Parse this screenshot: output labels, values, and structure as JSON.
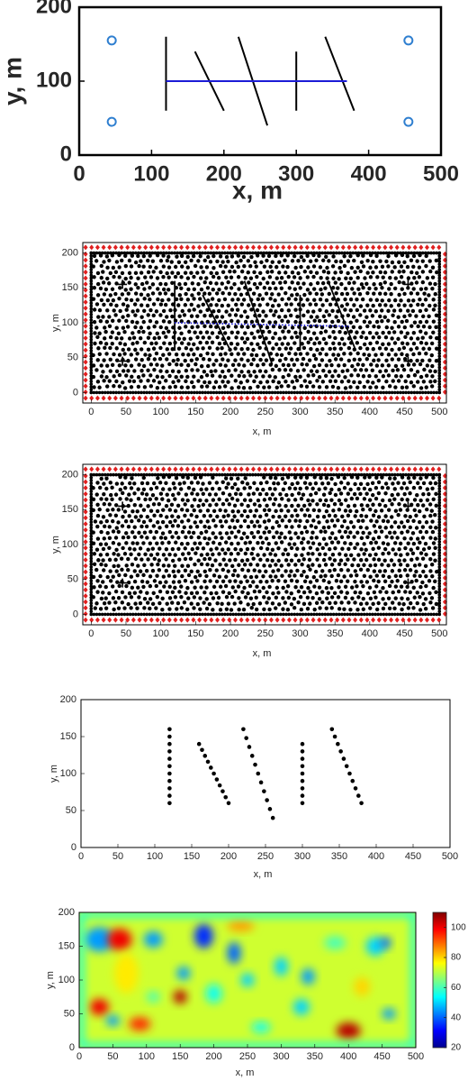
{
  "chart_data": [
    {
      "type": "line",
      "xlabel": "x, m",
      "ylabel": "y, m",
      "xlim": [
        0,
        500
      ],
      "ylim": [
        0,
        200
      ],
      "xticks": [
        0,
        100,
        200,
        300,
        400,
        500
      ],
      "yticks": [
        0,
        100,
        200
      ],
      "series": [
        {
          "color": "#000000",
          "x": [
            120,
            120
          ],
          "y": [
            160,
            60
          ]
        },
        {
          "color": "#000000",
          "x": [
            160,
            200
          ],
          "y": [
            140,
            60
          ]
        },
        {
          "color": "#000000",
          "x": [
            220,
            260
          ],
          "y": [
            160,
            40
          ]
        },
        {
          "color": "#000000",
          "x": [
            300,
            300
          ],
          "y": [
            140,
            60
          ]
        },
        {
          "color": "#000000",
          "x": [
            340,
            380
          ],
          "y": [
            160,
            60
          ]
        },
        {
          "color": "#1c1cd6",
          "x": [
            120,
            370
          ],
          "y": [
            100,
            100
          ]
        },
        {
          "color": "#2f7fd0",
          "marker": "circle",
          "x": [
            45,
            45,
            455,
            455
          ],
          "y": [
            155,
            45,
            155,
            45
          ]
        }
      ]
    },
    {
      "type": "mesh",
      "xlabel": "x, m",
      "ylabel": "y, m",
      "mesh": true,
      "xlim": [
        -12,
        510
      ],
      "ylim": [
        -15,
        215
      ],
      "xticks": [
        0,
        50,
        100,
        150,
        200,
        250,
        300,
        350,
        400,
        450,
        500
      ],
      "yticks": [
        0,
        50,
        100,
        150,
        200
      ],
      "series": [
        {
          "color": "#000000",
          "x": [
            120,
            120
          ],
          "y": [
            160,
            60
          ]
        },
        {
          "color": "#000000",
          "x": [
            160,
            200
          ],
          "y": [
            140,
            60
          ]
        },
        {
          "color": "#000000",
          "x": [
            220,
            260
          ],
          "y": [
            160,
            40
          ]
        },
        {
          "color": "#000000",
          "x": [
            300,
            300
          ],
          "y": [
            140,
            60
          ]
        },
        {
          "color": "#000000",
          "x": [
            340,
            380
          ],
          "y": [
            160,
            60
          ]
        },
        {
          "color": "#1c1cd6",
          "dash": "dotted",
          "x": [
            120,
            370
          ],
          "y": [
            100,
            95
          ]
        },
        {
          "color": "#000000",
          "marker": "plus",
          "x": [
            45,
            45,
            455,
            455
          ],
          "y": [
            155,
            45,
            155,
            45
          ]
        }
      ]
    },
    {
      "type": "mesh",
      "xlabel": "x, m",
      "ylabel": "y, m",
      "mesh": true,
      "xlim": [
        -12,
        510
      ],
      "ylim": [
        -15,
        215
      ],
      "xticks": [
        0,
        50,
        100,
        150,
        200,
        250,
        300,
        350,
        400,
        450,
        500
      ],
      "yticks": [
        0,
        50,
        100,
        150,
        200
      ],
      "series": [
        {
          "color": "#000000",
          "marker": "plus",
          "x": [
            45,
            45,
            455,
            455
          ],
          "y": [
            155,
            45,
            155,
            45
          ]
        }
      ]
    },
    {
      "type": "scatter",
      "xlabel": "x, m",
      "ylabel": "y, m",
      "xlim": [
        0,
        500
      ],
      "ylim": [
        0,
        200
      ],
      "xticks": [
        0,
        50,
        100,
        150,
        200,
        250,
        300,
        350,
        400,
        450,
        500
      ],
      "yticks": [
        0,
        50,
        100,
        150,
        200
      ],
      "series": [
        {
          "color": "#000000",
          "marker": "dot",
          "x": [
            120,
            120,
            120,
            120,
            120,
            120,
            120,
            120,
            120,
            120,
            120
          ],
          "y": [
            60,
            70,
            80,
            90,
            100,
            110,
            120,
            130,
            140,
            150,
            160
          ]
        },
        {
          "color": "#000000",
          "marker": "dot",
          "x": [
            160,
            164,
            168,
            172,
            176,
            180,
            184,
            188,
            192,
            196,
            200
          ],
          "y": [
            140,
            132,
            124,
            116,
            108,
            100,
            92,
            84,
            76,
            68,
            60
          ]
        },
        {
          "color": "#000000",
          "marker": "dot",
          "x": [
            220,
            224,
            228,
            232,
            236,
            240,
            244,
            248,
            252,
            256,
            260
          ],
          "y": [
            160,
            148,
            136,
            124,
            112,
            100,
            88,
            76,
            64,
            52,
            40
          ]
        },
        {
          "color": "#000000",
          "marker": "dot",
          "x": [
            300,
            300,
            300,
            300,
            300,
            300,
            300,
            300,
            300
          ],
          "y": [
            60,
            70,
            80,
            90,
            100,
            110,
            120,
            130,
            140
          ]
        },
        {
          "color": "#000000",
          "marker": "dot",
          "x": [
            340,
            344,
            348,
            352,
            356,
            360,
            364,
            368,
            372,
            376,
            380
          ],
          "y": [
            160,
            150,
            140,
            130,
            120,
            110,
            100,
            90,
            80,
            70,
            60
          ]
        }
      ]
    },
    {
      "type": "heatmap",
      "xlabel": "x, m",
      "ylabel": "y, m",
      "xlim": [
        0,
        500
      ],
      "ylim": [
        0,
        200
      ],
      "xticks": [
        0,
        50,
        100,
        150,
        200,
        250,
        300,
        350,
        400,
        450,
        500
      ],
      "yticks": [
        0,
        50,
        100,
        150,
        200
      ],
      "clim": [
        20,
        110
      ],
      "cticks": [
        20,
        40,
        60,
        80,
        100
      ]
    }
  ]
}
